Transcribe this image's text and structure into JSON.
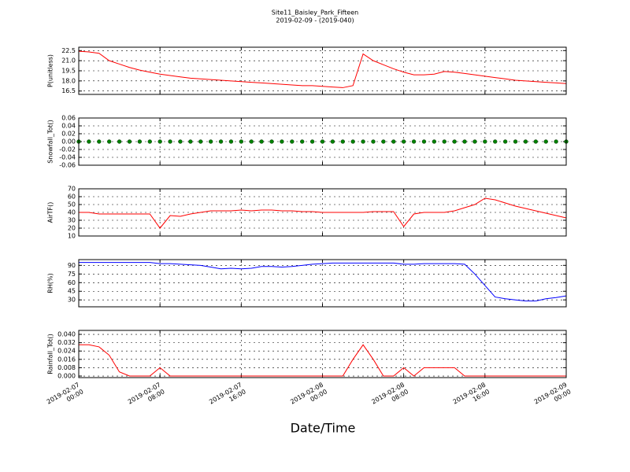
{
  "chart_data": {
    "type": "line",
    "title": "Site11_Baisley_Park_Fifteen",
    "subtitle": "2019-02-09 - (2019-040)",
    "xlabel": "Date/Time",
    "grid": true,
    "xlim": [
      "2019-02-07 00:00",
      "2019-02-09 00:00"
    ],
    "xticks": [
      "2019-02-07 00:00",
      "2019-02-07 08:00",
      "2019-02-07 16:00",
      "2019-02-08 00:00",
      "2019-02-08 08:00",
      "2019-02-08 16:00",
      "2019-02-09 00:00"
    ],
    "x": [
      "2019-02-07 00:00",
      "2019-02-07 01:00",
      "2019-02-07 02:00",
      "2019-02-07 03:00",
      "2019-02-07 04:00",
      "2019-02-07 05:00",
      "2019-02-07 06:00",
      "2019-02-07 07:00",
      "2019-02-07 08:00",
      "2019-02-07 09:00",
      "2019-02-07 10:00",
      "2019-02-07 11:00",
      "2019-02-07 12:00",
      "2019-02-07 13:00",
      "2019-02-07 14:00",
      "2019-02-07 15:00",
      "2019-02-07 16:00",
      "2019-02-07 17:00",
      "2019-02-07 18:00",
      "2019-02-07 19:00",
      "2019-02-07 20:00",
      "2019-02-07 21:00",
      "2019-02-07 22:00",
      "2019-02-07 23:00",
      "2019-02-08 00:00",
      "2019-02-08 01:00",
      "2019-02-08 02:00",
      "2019-02-08 03:00",
      "2019-02-08 04:00",
      "2019-02-08 05:00",
      "2019-02-08 06:00",
      "2019-02-08 07:00",
      "2019-02-08 08:00",
      "2019-02-08 09:00",
      "2019-02-08 10:00",
      "2019-02-08 11:00",
      "2019-02-08 12:00",
      "2019-02-08 13:00",
      "2019-02-08 14:00",
      "2019-02-08 15:00",
      "2019-02-08 16:00",
      "2019-02-08 17:00",
      "2019-02-08 18:00",
      "2019-02-08 19:00",
      "2019-02-08 20:00",
      "2019-02-08 21:00",
      "2019-02-08 22:00",
      "2019-02-08 23:00",
      "2019-02-09 00:00"
    ],
    "panels": [
      {
        "ylabel": "P(unitless)",
        "color": "#ff0000",
        "marker": "none",
        "ylim": [
          16,
          23
        ],
        "yticks": [
          16.5,
          {
            "value": 18,
            "label": "18.0"
          },
          19.5,
          {
            "value": 21,
            "label": "21.0"
          },
          22.5
        ],
        "values": [
          22.4,
          22.3,
          22.1,
          21.0,
          20.5,
          20.0,
          19.6,
          19.3,
          19.0,
          18.8,
          18.6,
          18.4,
          18.3,
          18.2,
          18.1,
          18.0,
          17.9,
          17.8,
          17.7,
          17.6,
          17.5,
          17.4,
          17.3,
          17.3,
          17.2,
          17.1,
          17.0,
          17.3,
          22.0,
          21.0,
          20.4,
          19.8,
          19.3,
          18.9,
          18.9,
          19.0,
          19.4,
          19.3,
          19.1,
          18.9,
          18.7,
          18.5,
          18.3,
          18.1,
          18.0,
          17.9,
          17.8,
          17.7,
          17.6
        ]
      },
      {
        "ylabel": "Snowfall_Tot()",
        "color": "#008000",
        "marker": "o",
        "ylim": [
          -0.06,
          0.06
        ],
        "yticks": [
          -0.06,
          -0.04,
          -0.02,
          {
            "value": 0,
            "label": "0.00"
          },
          0.02,
          0.04,
          0.06
        ],
        "values": [
          0,
          0,
          0,
          0,
          0,
          0,
          0,
          0,
          0,
          0,
          0,
          0,
          0,
          0,
          0,
          0,
          0,
          0,
          0,
          0,
          0,
          0,
          0,
          0,
          0,
          0,
          0,
          0,
          0,
          0,
          0,
          0,
          0,
          0,
          0,
          0,
          0,
          0,
          0,
          0,
          0,
          0,
          0,
          0,
          0,
          0,
          0,
          0,
          0
        ]
      },
      {
        "ylabel": "AirTF()",
        "color": "#ff0000",
        "marker": "none",
        "ylim": [
          10,
          70
        ],
        "yticks": [
          10,
          20,
          30,
          40,
          50,
          60,
          70
        ],
        "values": [
          40,
          40,
          38,
          38,
          38,
          38,
          38,
          38,
          20,
          36,
          35,
          38,
          40,
          42,
          42,
          42,
          43,
          42,
          43,
          43,
          42,
          42,
          41,
          41,
          40,
          40,
          40,
          40,
          40,
          41,
          41,
          41,
          22,
          38,
          40,
          40,
          40,
          42,
          46,
          50,
          58,
          56,
          52,
          48,
          45,
          42,
          39,
          36,
          33
        ]
      },
      {
        "ylabel": "RH(%)",
        "color": "#0000ff",
        "marker": "none",
        "ylim": [
          18,
          100
        ],
        "yticks": [
          30,
          45,
          60,
          75,
          90
        ],
        "values": [
          95,
          95,
          95,
          95,
          95,
          95,
          95,
          95,
          93,
          93,
          92,
          91,
          90,
          87,
          84,
          85,
          84,
          85,
          88,
          88,
          87,
          88,
          90,
          92,
          93,
          94,
          94,
          94,
          94,
          94,
          94,
          94,
          92,
          92,
          93,
          93,
          93,
          93,
          92,
          75,
          55,
          35,
          32,
          30,
          28,
          28,
          32,
          34,
          37
        ]
      },
      {
        "ylabel": "Rainfall_Tot()",
        "color": "#ff0000",
        "marker": "none",
        "ylim": [
          -0.0015,
          0.0438
        ],
        "yticks": [
          {
            "value": 0,
            "label": "0.000"
          },
          0.008,
          0.016,
          0.024,
          0.032,
          {
            "value": 0.04,
            "label": "0.040"
          }
        ],
        "values": [
          0.03,
          0.03,
          0.028,
          0.02,
          0.004,
          0,
          0,
          0,
          0.008,
          0,
          0,
          0,
          0,
          0,
          0,
          0,
          0,
          0,
          0,
          0,
          0,
          0,
          0,
          0,
          0,
          0,
          0,
          0.016,
          0.03,
          0.016,
          0,
          0,
          0.008,
          0,
          0.008,
          0.008,
          0.008,
          0.008,
          0,
          0,
          0,
          0,
          0,
          0,
          0,
          0,
          0,
          0,
          0
        ]
      }
    ]
  }
}
